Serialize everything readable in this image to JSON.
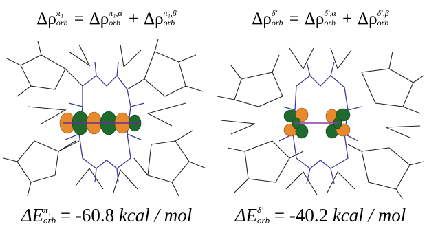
{
  "panels": [
    {
      "formula": {
        "lhs_symbol": "Δρ",
        "lhs_sup": "π₁",
        "lhs_sub": "orb",
        "equals": "=",
        "term1_symbol": "Δρ",
        "term1_sup": "π₁,α",
        "term1_sub": "orb",
        "plus": "+",
        "term2_symbol": "Δρ",
        "term2_sup": "π₁,β",
        "term2_sub": "orb"
      },
      "energy": {
        "symbol": "ΔE",
        "sup": "π₁",
        "sub": "orb",
        "equals": "=",
        "value": "-60.8",
        "unit": "kcal / mol"
      }
    },
    {
      "formula": {
        "lhs_symbol": "Δρ",
        "lhs_sup": "δ'",
        "lhs_sub": "orb",
        "equals": "=",
        "term1_symbol": "Δρ",
        "term1_sup": "δ',α",
        "term1_sub": "orb",
        "plus": "+",
        "term2_symbol": "Δρ",
        "term2_sup": "δ',β",
        "term2_sub": "orb"
      },
      "energy": {
        "symbol": "ΔE",
        "sup": "δ'",
        "sub": "orb",
        "equals": "=",
        "value": "-40.2",
        "unit": "kcal / mol"
      }
    }
  ],
  "colors": {
    "bond": "#222222",
    "nitrogen": "#3a3d9a",
    "orbital_dark": "#1f6b2e",
    "orbital_light": "#e8892c"
  }
}
